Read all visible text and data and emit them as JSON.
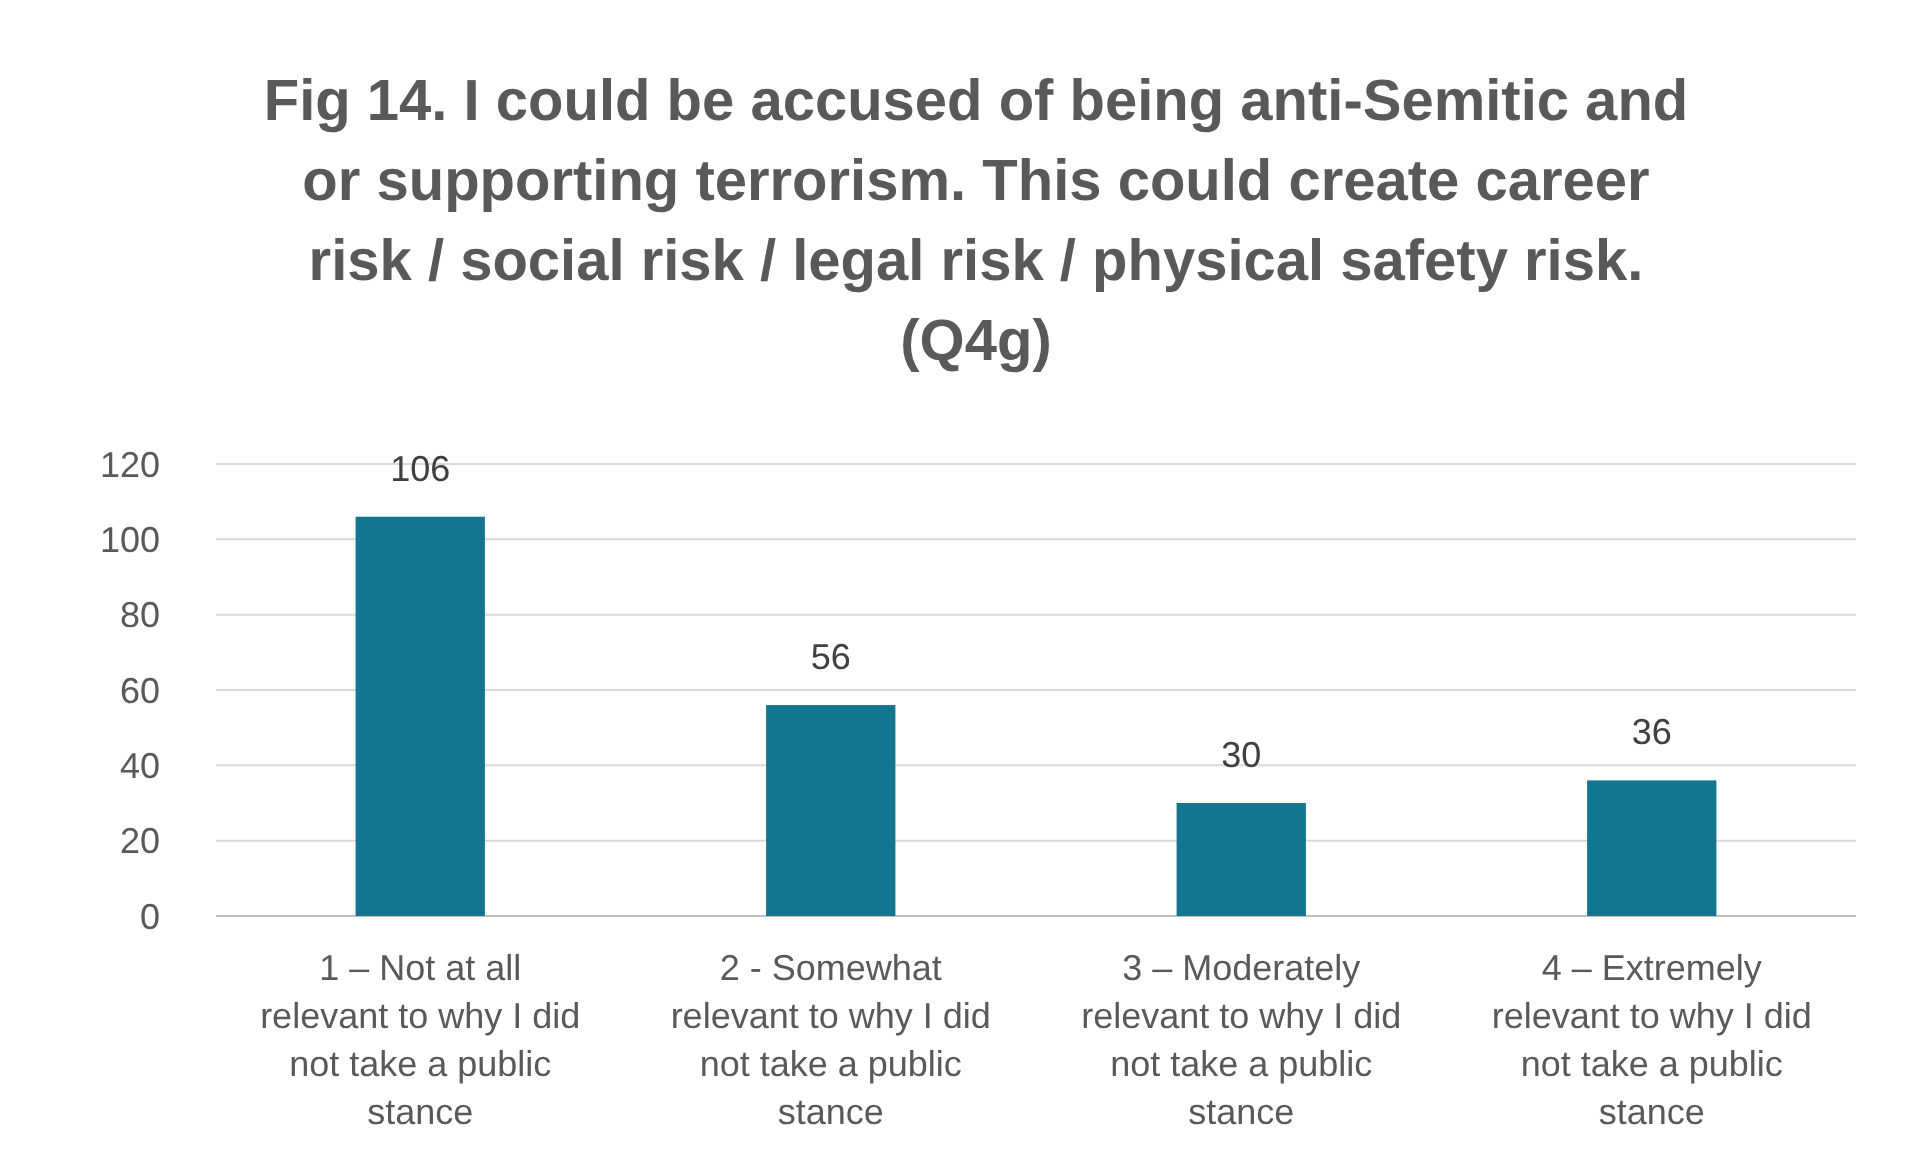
{
  "chart_data": {
    "type": "bar",
    "title": "Fig 14. I could be accused of being anti-Semitic and or supporting terrorism. This could create career risk / social risk / legal risk / physical safety risk. (Q4g)",
    "categories": [
      "1 – Not at all relevant to why I did not take a public stance",
      "2 - Somewhat relevant to why I did not take a public stance",
      "3 – Moderately relevant to why I did not take a public stance",
      "4 – Extremely relevant to why I did not take a public stance"
    ],
    "values": [
      106,
      56,
      30,
      36
    ],
    "color": "#13758f",
    "ylim": [
      0,
      120
    ],
    "yticks": [
      0,
      20,
      40,
      60,
      80,
      100,
      120
    ],
    "grid": "y",
    "data_labels": true
  }
}
